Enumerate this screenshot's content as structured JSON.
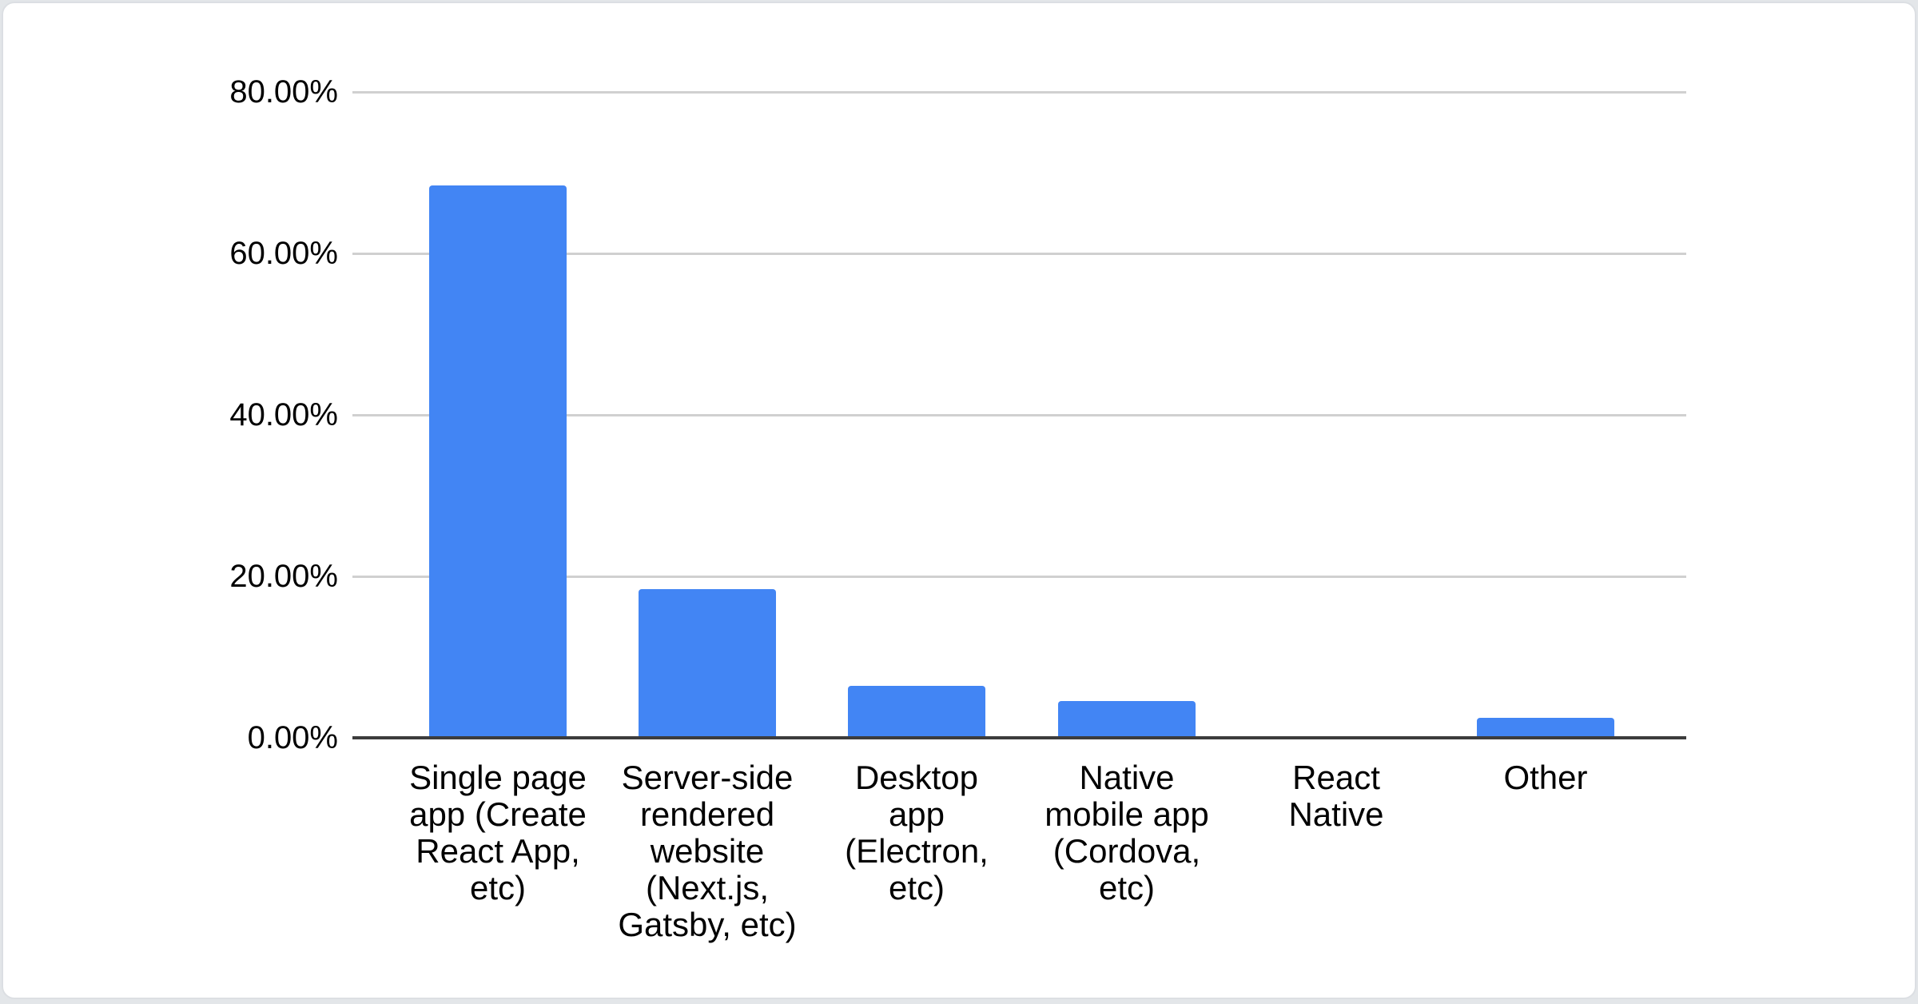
{
  "chart_data": {
    "type": "bar",
    "title": "",
    "categories": [
      "Single page app (Create React App, etc)",
      "Server-side rendered website (Next.js, Gatsby, etc)",
      "Desktop app (Electron, etc)",
      "Native mobile app (Cordova, etc)",
      "React Native",
      "Other"
    ],
    "category_label_lines": [
      [
        "Single page",
        "app (Create",
        "React App,",
        "etc)"
      ],
      [
        "Server-side",
        "rendered",
        "website",
        "(Next.js,",
        "Gatsby, etc)"
      ],
      [
        "Desktop",
        "app",
        "(Electron,",
        "etc)"
      ],
      [
        "Native",
        "mobile app",
        "(Cordova,",
        "etc)"
      ],
      [
        "React",
        "Native"
      ],
      [
        "Other"
      ]
    ],
    "values": [
      68.4,
      18.4,
      6.4,
      4.6,
      0,
      2.5
    ],
    "value_unit": "percent",
    "xlabel": "",
    "ylabel": "",
    "y_axis": {
      "tick_labels": [
        "0.00%",
        "20.00%",
        "40.00%",
        "60.00%",
        "80.00%"
      ],
      "tick_values": [
        0,
        20,
        40,
        60,
        80
      ],
      "min": 0,
      "max": 80
    },
    "grid": true,
    "legend": "none",
    "colors": {
      "bar": "#4285f4",
      "gridline": "#d0d0d0",
      "axis_line": "#3c3c3c",
      "text": "#000000",
      "card_background": "#ffffff",
      "card_border": "#dcdfe3",
      "page_background": "#e3e6e9"
    }
  }
}
